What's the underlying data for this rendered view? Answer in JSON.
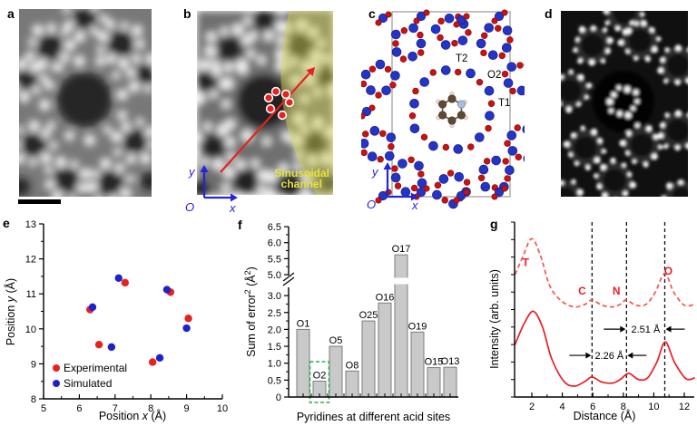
{
  "figure": {
    "panels": {
      "a": {
        "label": "a"
      },
      "b": {
        "label": "b",
        "axes": {
          "x": "x",
          "y": "y",
          "origin": "O"
        },
        "channel_line1": "Sinusoidal",
        "channel_line2": "channel"
      },
      "c": {
        "label": "c",
        "axes": {
          "x": "x",
          "y": "y",
          "origin": "O"
        },
        "site_t2": "T2",
        "site_o2": "O2",
        "site_t1": "T1"
      },
      "d": {
        "label": "d"
      },
      "e": {
        "label": "e"
      },
      "f": {
        "label": "f"
      },
      "g": {
        "label": "g"
      }
    },
    "colors": {
      "experimental_red": "#e8201e",
      "simulated_blue": "#1e22cc",
      "axis_blue": "#2424d8",
      "bar_fill": "#c9c9c9",
      "bar_stroke": "#7d7d7d",
      "highlight_green": "#2fae54",
      "channel_yellow": "#e8e435",
      "curve_solid_red": "#ed1c24",
      "curve_dashed_red": "#f4544f"
    }
  },
  "chart_data": [
    {
      "id": "e",
      "type": "scatter",
      "xlabel_parts": [
        {
          "t": "Position "
        },
        {
          "t": "x",
          "italic": true
        },
        {
          "t": " (Å)"
        }
      ],
      "ylabel_parts": [
        {
          "t": "Position "
        },
        {
          "t": "y",
          "italic": true
        },
        {
          "t": " (Å)"
        }
      ],
      "xlim": [
        5,
        10
      ],
      "ylim": [
        8,
        13
      ],
      "xticks": [
        "5",
        "6",
        "7",
        "8",
        "9",
        "10"
      ],
      "yticks": [
        "8",
        "9",
        "10",
        "11",
        "12",
        "13"
      ],
      "legend_position": "bottom-left",
      "series": [
        {
          "name": "Experimental",
          "color": "#e8201e",
          "points": [
            [
              6.3,
              10.55
            ],
            [
              6.55,
              9.55
            ],
            [
              7.28,
              11.32
            ],
            [
              8.05,
              9.05
            ],
            [
              8.55,
              11.05
            ],
            [
              9.05,
              10.3
            ]
          ]
        },
        {
          "name": "Simulated",
          "color": "#1e22cc",
          "points": [
            [
              6.37,
              10.62
            ],
            [
              6.9,
              9.48
            ],
            [
              7.1,
              11.45
            ],
            [
              8.25,
              9.17
            ],
            [
              8.45,
              11.12
            ],
            [
              9.0,
              10.02
            ]
          ]
        }
      ]
    },
    {
      "id": "f",
      "type": "bar",
      "ylabel_parts": [
        {
          "t": "Sum of error"
        },
        {
          "t": "2",
          "sup": true
        },
        {
          "t": " (Å"
        },
        {
          "t": "2",
          "sup": true
        },
        {
          "t": ")"
        }
      ],
      "xlabel": "Pyridines at different acid sites",
      "categories": [
        "O1",
        "O2",
        "O5",
        "O8",
        "O25",
        "O16",
        "O17",
        "O19",
        "O15",
        "O13"
      ],
      "values": [
        2.0,
        0.47,
        1.5,
        0.77,
        2.25,
        2.78,
        5.62,
        1.92,
        0.87,
        0.88
      ],
      "highlight_category": "O2",
      "yticks_lower": [
        [
          "0",
          0
        ],
        [
          "0.5",
          0.5
        ],
        [
          "1.0",
          1.0
        ],
        [
          "1.5",
          1.5
        ],
        [
          "2.0",
          2.0
        ],
        [
          "2.5",
          2.5
        ],
        [
          "3.0",
          3.0
        ]
      ],
      "yticks_upper": [
        [
          "5.0",
          5.0
        ],
        [
          "5.5",
          5.5
        ],
        [
          "6.0",
          6.0
        ],
        [
          "6.5",
          6.5
        ]
      ],
      "axis_break_between": [
        3.0,
        5.0
      ]
    },
    {
      "id": "g",
      "type": "line",
      "ylabel_parts": [
        {
          "t": "Intensity (arb. units)"
        }
      ],
      "xlabel": "Distance (Å)",
      "xlim": [
        1,
        13
      ],
      "xticks": [
        "2",
        "4",
        "6",
        "8",
        "10",
        "12"
      ],
      "series": [
        {
          "name": "simulated_profile",
          "dash": true,
          "color": "#f4544f",
          "points": [
            [
              0.9,
              0.7
            ],
            [
              1.4,
              0.8
            ],
            [
              2.0,
              0.905
            ],
            [
              2.6,
              0.8
            ],
            [
              3.2,
              0.63
            ],
            [
              4.0,
              0.545
            ],
            [
              4.8,
              0.515
            ],
            [
              5.5,
              0.53
            ],
            [
              5.95,
              0.555
            ],
            [
              6.6,
              0.525
            ],
            [
              7.3,
              0.515
            ],
            [
              7.8,
              0.53
            ],
            [
              8.21,
              0.555
            ],
            [
              8.8,
              0.525
            ],
            [
              9.5,
              0.53
            ],
            [
              10.1,
              0.6
            ],
            [
              10.72,
              0.705
            ],
            [
              11.3,
              0.6
            ],
            [
              12.0,
              0.525
            ],
            [
              12.7,
              0.53
            ]
          ]
        },
        {
          "name": "experimental_profile",
          "dash": false,
          "color": "#ed1c24",
          "points": [
            [
              0.9,
              0.3
            ],
            [
              1.5,
              0.42
            ],
            [
              2.1,
              0.49
            ],
            [
              2.7,
              0.4
            ],
            [
              3.3,
              0.22
            ],
            [
              4.1,
              0.09
            ],
            [
              4.8,
              0.062
            ],
            [
              5.5,
              0.09
            ],
            [
              5.95,
              0.115
            ],
            [
              6.6,
              0.085
            ],
            [
              7.3,
              0.08
            ],
            [
              7.8,
              0.1
            ],
            [
              8.35,
              0.135
            ],
            [
              9.0,
              0.1
            ],
            [
              9.6,
              0.11
            ],
            [
              10.2,
              0.2
            ],
            [
              10.75,
              0.315
            ],
            [
              11.35,
              0.2
            ],
            [
              12.1,
              0.105
            ],
            [
              12.7,
              0.11
            ]
          ]
        }
      ],
      "peak_labels": [
        {
          "text": "T",
          "x": 1.6,
          "v": 0.75
        },
        {
          "text": "C",
          "x": 5.3,
          "v": 0.585
        },
        {
          "text": "N",
          "x": 7.55,
          "v": 0.585
        },
        {
          "text": "O",
          "x": 10.95,
          "v": 0.7
        }
      ],
      "vlines": [
        5.95,
        8.21,
        10.72
      ],
      "annotations": [
        {
          "text": "2.26 Å",
          "between": [
            5.95,
            8.21
          ],
          "v": 0.238
        },
        {
          "text": "2.51 Å",
          "between": [
            8.21,
            10.72
          ],
          "v": 0.388
        }
      ]
    }
  ]
}
